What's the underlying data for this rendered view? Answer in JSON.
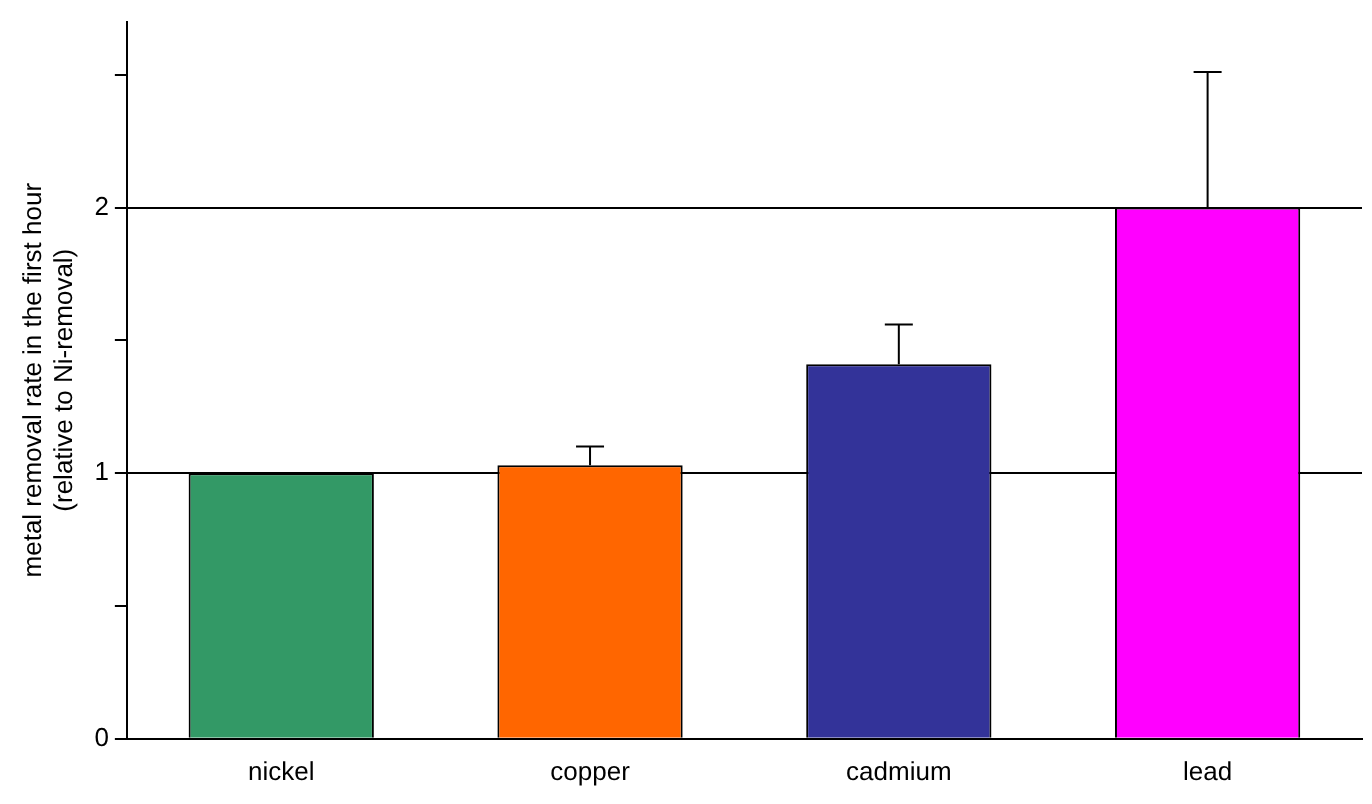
{
  "chart_data": {
    "type": "bar",
    "ylabel": "metal removal rate in the first hour\n(relative to Ni-removal)",
    "categories": [
      "nickel",
      "copper",
      "cadmium",
      "lead"
    ],
    "values": [
      1.0,
      1.03,
      1.41,
      2.0
    ],
    "colors": [
      "#339966",
      "#ff6600",
      "#333399",
      "#ff00ff"
    ],
    "errors": [
      [
        1.0,
        1.0
      ],
      [
        1.03,
        1.1
      ],
      [
        1.41,
        1.56
      ],
      [
        2.0,
        2.51
      ]
    ],
    "ylim": [
      0,
      2.7
    ],
    "yticks": [
      0,
      {
        "value": 0.5,
        "label": null
      },
      1,
      {
        "value": 1.5,
        "label": null
      },
      2,
      {
        "value": 2.5,
        "label": null
      }
    ],
    "grid": "y",
    "legend": false
  }
}
